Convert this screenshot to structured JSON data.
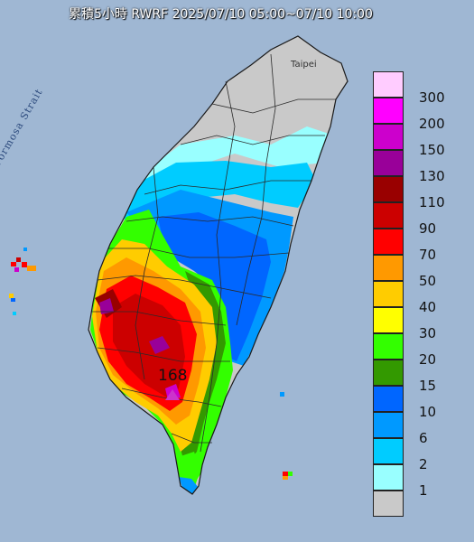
{
  "title": "累積5小時 RWRF 2025/07/10 05:00~07/10 10:00",
  "city_label": "Taipei",
  "strait_label": "Formosa Strait",
  "max_value": "168",
  "colors": {
    "ocean": "#9fb7d3",
    "land_no_rain": "#c9c9c9",
    "boundary": "#2a2a2a"
  },
  "legend": [
    {
      "label": "300",
      "color": "#ffccff"
    },
    {
      "label": "200",
      "color": "#ff00ff"
    },
    {
      "label": "150",
      "color": "#cc00cc"
    },
    {
      "label": "130",
      "color": "#990099"
    },
    {
      "label": "110",
      "color": "#990000"
    },
    {
      "label": "90",
      "color": "#cc0000"
    },
    {
      "label": "70",
      "color": "#ff0000"
    },
    {
      "label": "50",
      "color": "#ff9900"
    },
    {
      "label": "40",
      "color": "#ffcc00"
    },
    {
      "label": "30",
      "color": "#ffff00"
    },
    {
      "label": "20",
      "color": "#33ff00"
    },
    {
      "label": "15",
      "color": "#339900"
    },
    {
      "label": "10",
      "color": "#0066ff"
    },
    {
      "label": "6",
      "color": "#0099ff"
    },
    {
      "label": "2",
      "color": "#00ccff"
    },
    {
      "label": "1",
      "color": "#99ffff"
    },
    {
      "label": "",
      "color": "#c9c9c9"
    }
  ]
}
